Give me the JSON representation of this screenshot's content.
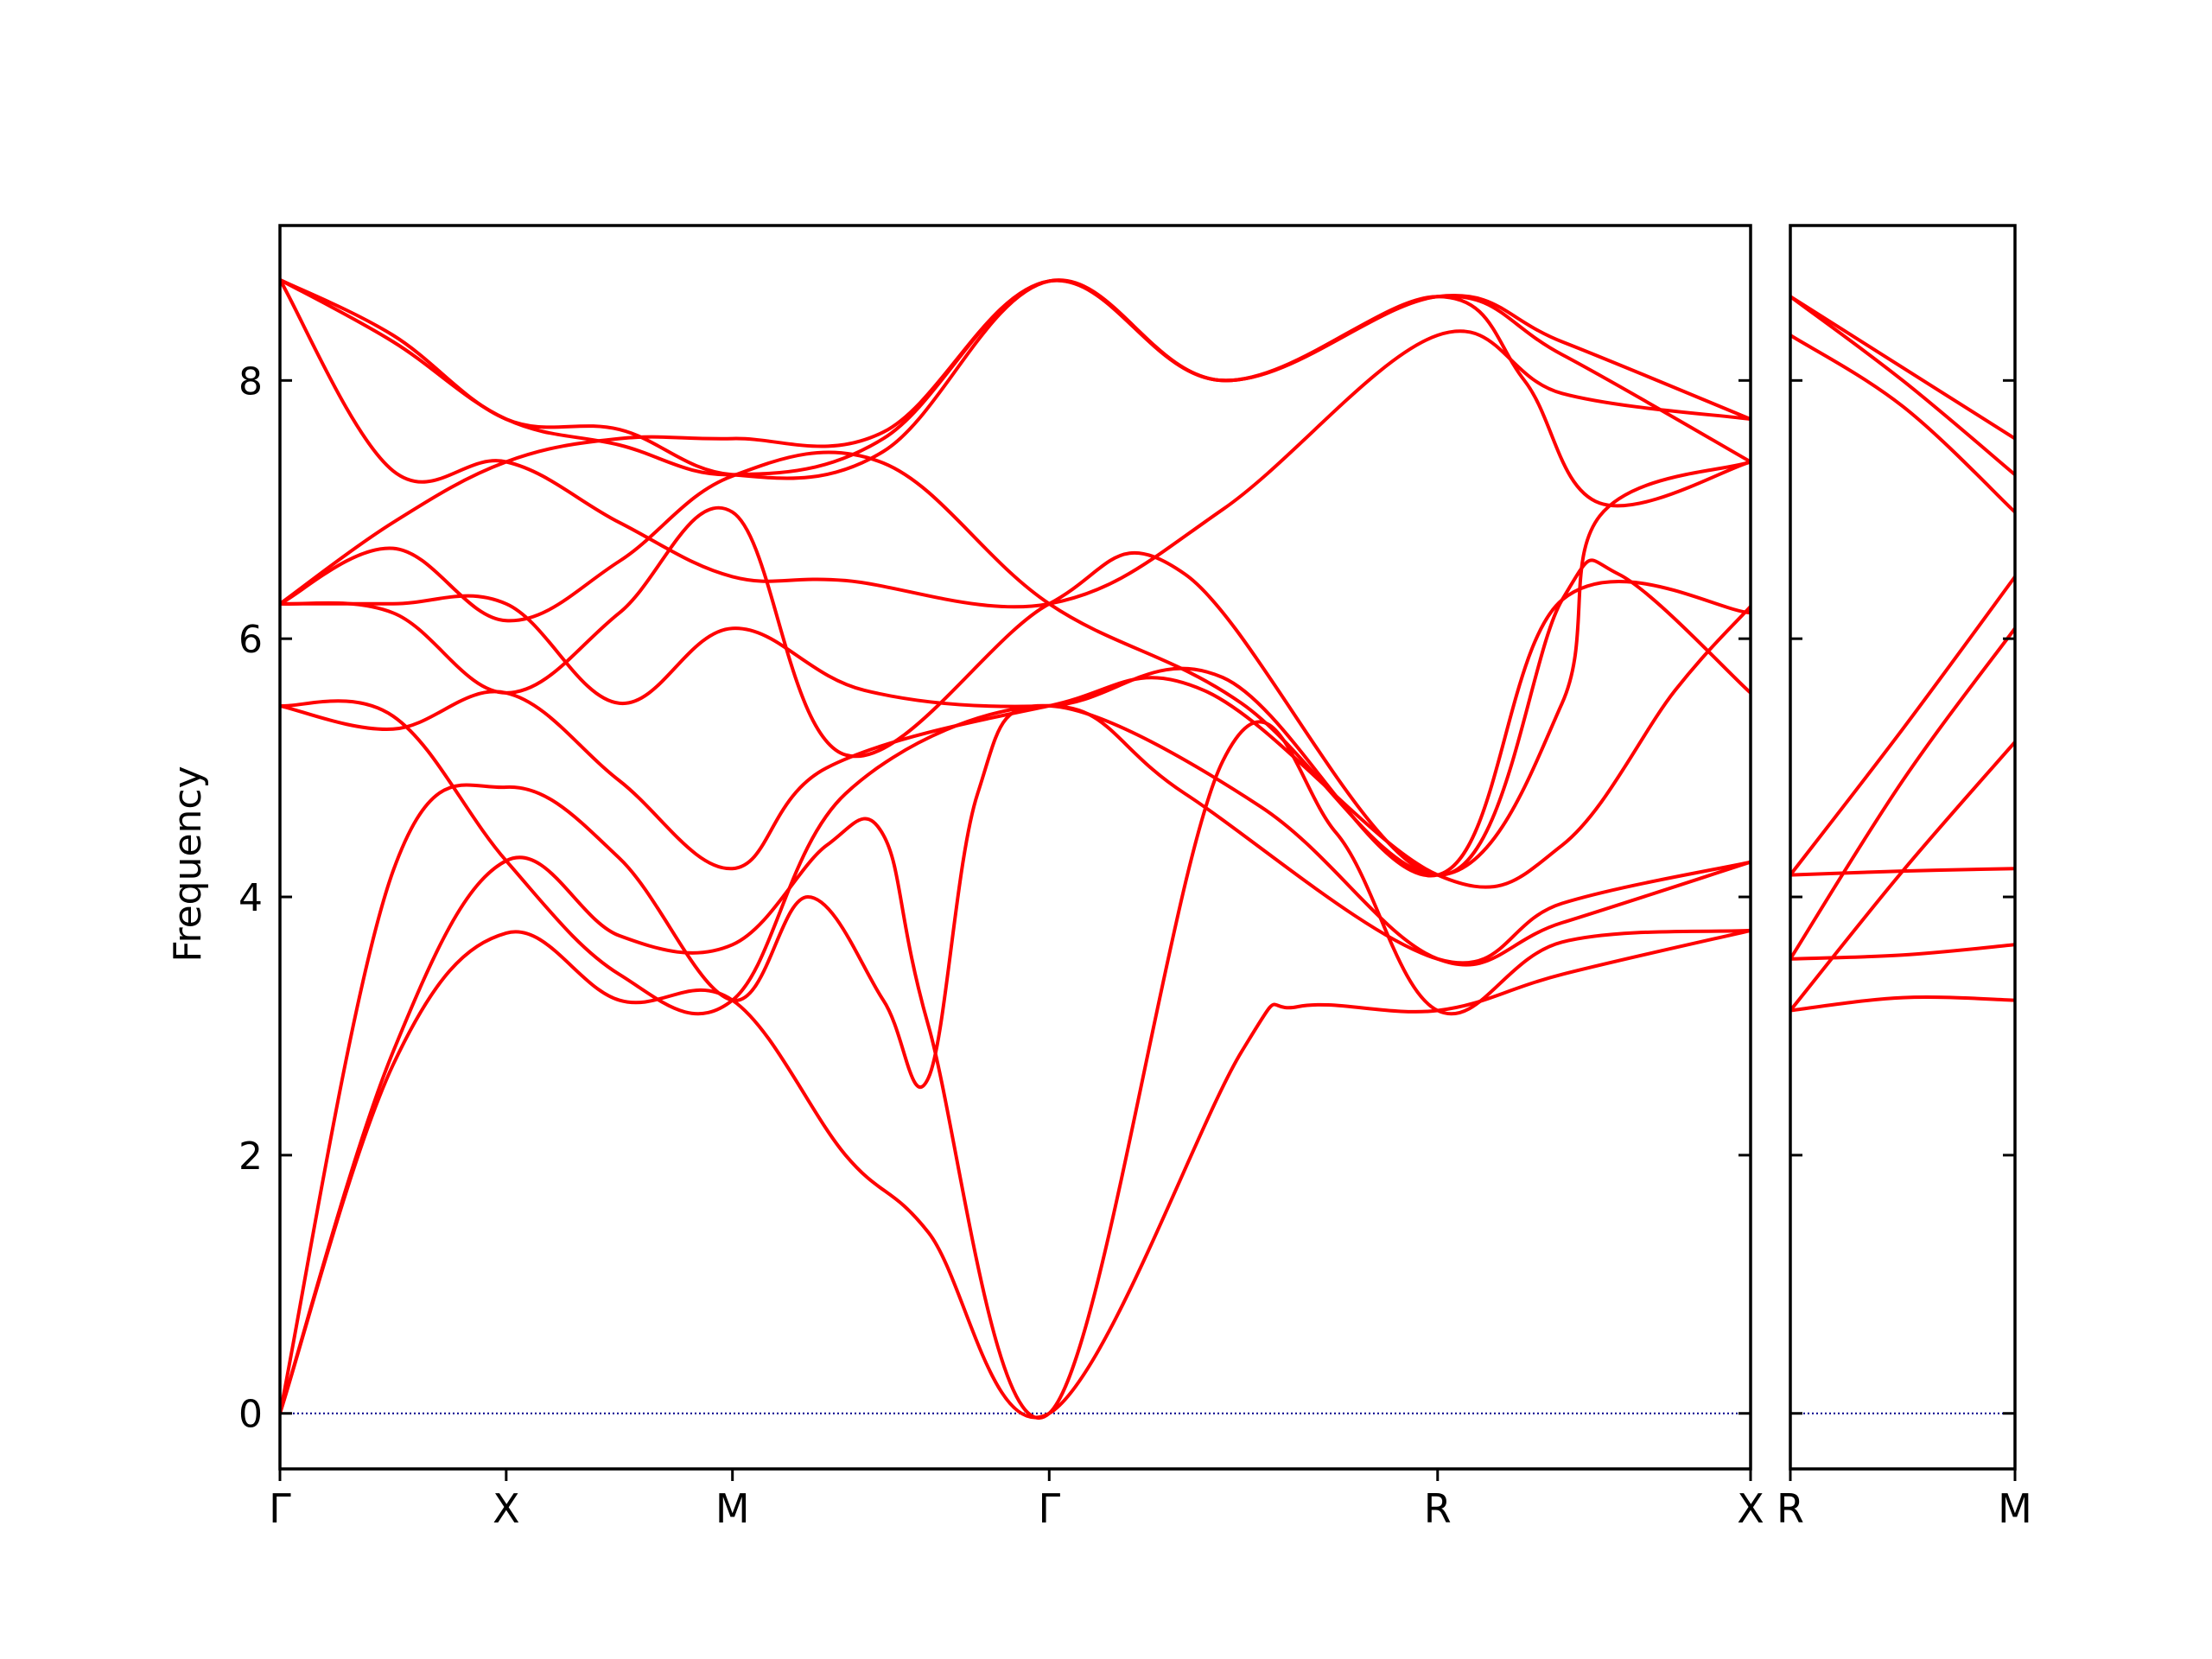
{
  "chart_data": {
    "type": "line",
    "title": "",
    "ylabel": "Frequency",
    "ylim": [
      -0.43,
      9.2
    ],
    "y_ticks": [
      0,
      2,
      4,
      6,
      8
    ],
    "grid": false,
    "legend": "none",
    "colors": {
      "bands": "#ff0000",
      "zero_line": "#00008b",
      "axes": "#000000"
    },
    "panels": [
      {
        "x_range": [
          0,
          3.9
        ],
        "ticks": [
          {
            "x": 0,
            "label": "Γ"
          },
          {
            "x": 0.6,
            "label": "X"
          },
          {
            "x": 1.2,
            "label": "M"
          },
          {
            "x": 2.04,
            "label": "Γ"
          },
          {
            "x": 3.07,
            "label": "R"
          },
          {
            "x": 3.9,
            "label": "X"
          }
        ],
        "series": [
          {
            "x": [
              0,
              0.3,
              0.6,
              0.9,
              1.2,
              1.5,
              1.72,
              2.04,
              2.55,
              2.7,
              3.07,
              3.4,
              3.9
            ],
            "values": [
              0,
              2.7,
              3.72,
              3.2,
              3.2,
              2.0,
              1.4,
              0,
              2.8,
              3.15,
              3.12,
              3.4,
              3.74
            ]
          },
          {
            "x": [
              0,
              0.3,
              0.6,
              0.9,
              1.2,
              1.45,
              1.6,
              1.72,
              2.04,
              2.5,
              2.8,
              3.07,
              3.4,
              3.9
            ],
            "values": [
              0,
              2.8,
              4.28,
              3.7,
              3.63,
              4.4,
              4.48,
              3.0,
              0,
              5.05,
              4.5,
              3.12,
              3.65,
              3.74
            ]
          },
          {
            "x": [
              0,
              0.3,
              0.6,
              0.9,
              1.2,
              1.4,
              1.6,
              1.72,
              1.85,
              2.04,
              2.6,
              3.07,
              3.4,
              3.9
            ],
            "values": [
              0,
              4.2,
              4.85,
              4.3,
              3.2,
              4.0,
              3.2,
              2.6,
              4.8,
              5.48,
              4.7,
              3.52,
              3.8,
              4.27
            ]
          },
          {
            "x": [
              0,
              0.3,
              0.6,
              0.9,
              1.2,
              1.5,
              2.04,
              2.4,
              3.07,
              3.4,
              3.9
            ],
            "values": [
              5.48,
              5.4,
              4.28,
              3.4,
              3.2,
              4.8,
              5.48,
              4.8,
              3.52,
              3.95,
              4.27
            ]
          },
          {
            "x": [
              0,
              0.3,
              0.6,
              0.9,
              1.2,
              1.45,
              2.04,
              2.45,
              3.07,
              3.4,
              3.7,
              3.9
            ],
            "values": [
              5.48,
              5.3,
              5.58,
              4.9,
              4.22,
              5.0,
              5.48,
              5.6,
              4.17,
              4.4,
              5.6,
              6.25
            ]
          },
          {
            "x": [
              0,
              0.3,
              0.6,
              0.9,
              1.2,
              1.55,
              2.04,
              2.5,
              3.07,
              3.4,
              3.9
            ],
            "values": [
              6.27,
              6.27,
              6.27,
              5.5,
              6.08,
              5.6,
              5.48,
              5.7,
              4.17,
              6.3,
              6.2
            ]
          },
          {
            "x": [
              0,
              0.3,
              0.6,
              0.9,
              1.2,
              1.5,
              2.04,
              2.4,
              3.07,
              3.4,
              3.55,
              3.9
            ],
            "values": [
              6.27,
              6.2,
              5.58,
              6.2,
              6.98,
              5.1,
              6.27,
              6.5,
              4.17,
              6.3,
              6.5,
              5.58
            ]
          },
          {
            "x": [
              0,
              0.3,
              0.6,
              0.9,
              1.2,
              1.6,
              2.04,
              2.55,
              3.07,
              3.4,
              3.5,
              3.9
            ],
            "values": [
              6.27,
              6.7,
              6.14,
              6.6,
              7.26,
              7.36,
              6.27,
              5.5,
              4.17,
              5.5,
              6.95,
              7.37
            ]
          },
          {
            "x": [
              0,
              0.3,
              0.6,
              0.9,
              1.2,
              1.5,
              2.04,
              2.5,
              3.07,
              3.4,
              3.9
            ],
            "values": [
              8.78,
              7.3,
              7.37,
              6.9,
              6.48,
              6.45,
              6.27,
              7.0,
              8.35,
              7.9,
              7.7
            ]
          },
          {
            "x": [
              0,
              0.3,
              0.6,
              0.9,
              1.2,
              1.6,
              2.04,
              2.5,
              3.07,
              3.3,
              3.5,
              3.9
            ],
            "values": [
              6.27,
              6.9,
              7.37,
              7.55,
              7.55,
              7.6,
              8.77,
              8.0,
              8.65,
              8.0,
              7.05,
              7.37
            ]
          },
          {
            "x": [
              0,
              0.3,
              0.6,
              0.9,
              1.2,
              1.6,
              2.04,
              2.5,
              3.07,
              3.4,
              3.9
            ],
            "values": [
              8.78,
              8.3,
              7.7,
              7.5,
              7.27,
              7.55,
              8.77,
              8.0,
              8.65,
              8.2,
              7.37
            ]
          },
          {
            "x": [
              0,
              0.3,
              0.6,
              0.9,
              1.2,
              1.6,
              2.04,
              2.5,
              3.07,
              3.4,
              3.9
            ],
            "values": [
              8.78,
              8.35,
              7.7,
              7.62,
              7.27,
              7.45,
              8.77,
              8.0,
              8.65,
              8.3,
              7.7
            ]
          }
        ]
      },
      {
        "x_range": [
          0,
          0.6
        ],
        "ticks": [
          {
            "x": 0,
            "label": "R"
          },
          {
            "x": 0.6,
            "label": "M"
          }
        ],
        "series": [
          {
            "x": [
              0,
              0.3,
              0.6
            ],
            "values": [
              3.12,
              3.22,
              3.2
            ]
          },
          {
            "x": [
              0,
              0.3,
              0.6
            ],
            "values": [
              3.52,
              3.55,
              3.63
            ]
          },
          {
            "x": [
              0,
              0.3,
              0.6
            ],
            "values": [
              4.17,
              4.2,
              4.22
            ]
          },
          {
            "x": [
              0,
              0.3,
              0.6
            ],
            "values": [
              3.12,
              4.2,
              5.2
            ]
          },
          {
            "x": [
              0,
              0.3,
              0.6
            ],
            "values": [
              3.52,
              4.9,
              6.08
            ]
          },
          {
            "x": [
              0,
              0.3,
              0.6
            ],
            "values": [
              4.17,
              5.3,
              6.48
            ]
          },
          {
            "x": [
              0,
              0.3,
              0.6
            ],
            "values": [
              8.35,
              7.8,
              6.98
            ]
          },
          {
            "x": [
              0,
              0.3,
              0.6
            ],
            "values": [
              8.65,
              8.0,
              7.27
            ]
          },
          {
            "x": [
              0,
              0.3,
              0.6
            ],
            "values": [
              8.65,
              8.1,
              7.55
            ]
          }
        ]
      }
    ]
  }
}
